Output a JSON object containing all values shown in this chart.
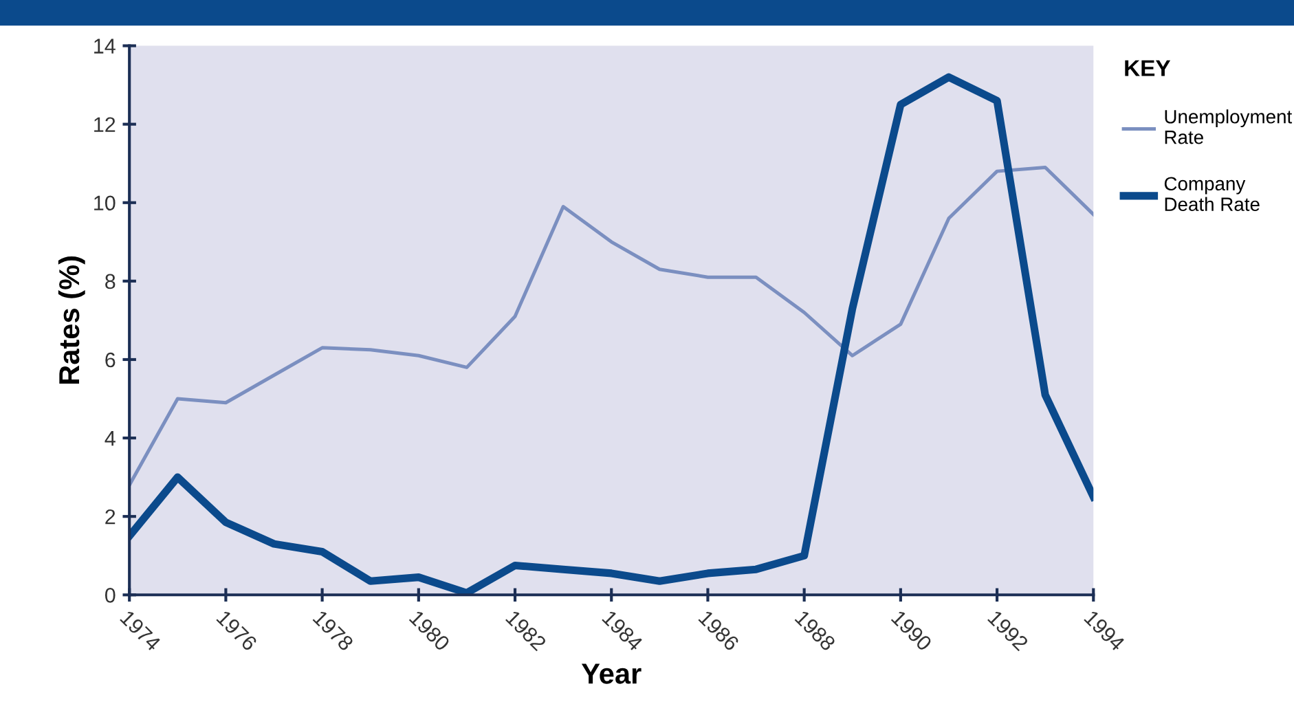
{
  "chart_data": {
    "type": "line",
    "xlabel": "Year",
    "ylabel": "Rates (%)",
    "legend_title": "KEY",
    "legend": "right",
    "grid": false,
    "marker": "none",
    "line_style": "solid",
    "x": [
      1974,
      1975,
      1976,
      1977,
      1978,
      1979,
      1980,
      1981,
      1982,
      1983,
      1984,
      1985,
      1986,
      1987,
      1988,
      1989,
      1990,
      1991,
      1992,
      1993,
      1994
    ],
    "series": [
      {
        "name": "Unemployment Rate",
        "color": "#7b8fc0",
        "values": [
          2.8,
          5.0,
          4.9,
          5.6,
          6.3,
          6.25,
          6.1,
          5.8,
          7.1,
          9.9,
          9.0,
          8.3,
          8.1,
          8.1,
          7.2,
          6.1,
          6.9,
          9.6,
          10.8,
          10.9,
          9.7
        ]
      },
      {
        "name": "Company Death Rate",
        "color": "#0b4a8c",
        "values": [
          1.5,
          3.0,
          1.85,
          1.3,
          1.1,
          0.35,
          0.45,
          0.05,
          0.75,
          0.65,
          0.55,
          0.35,
          0.55,
          0.65,
          1.0,
          7.3,
          12.5,
          13.2,
          12.6,
          5.1,
          2.5
        ]
      }
    ],
    "xlim": [
      1974,
      1994
    ],
    "xticks": [
      1974,
      1976,
      1978,
      1980,
      1982,
      1984,
      1986,
      1988,
      1990,
      1992,
      1994
    ],
    "ylim": [
      0,
      14
    ],
    "yticks": [
      0,
      2,
      4,
      6,
      8,
      10,
      12,
      14
    ]
  }
}
